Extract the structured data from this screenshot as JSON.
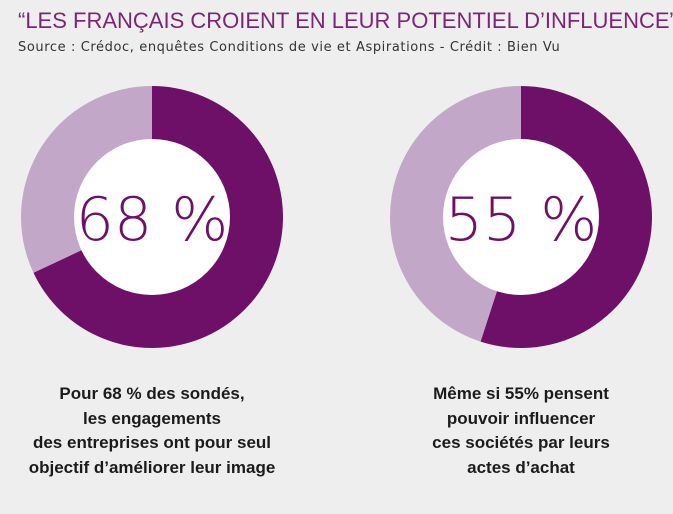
{
  "header": {
    "title": "“LES FRANÇAIS CROIENT EN LEUR POTENTIEL D’INFLUENCE”",
    "source": "Source : Crédoc, enquêtes Conditions de vie et Aspirations - Crédit : Bien Vu"
  },
  "colors": {
    "dark_purple": "#6e1068",
    "light_purple": "#c2a7c9",
    "title_purple": "#7d2575",
    "background": "#eeeeee"
  },
  "chart_data": [
    {
      "type": "pie",
      "variant": "donut",
      "center_label": "68 %",
      "values": [
        68,
        32
      ],
      "colors": [
        "#6e1068",
        "#c2a7c9"
      ],
      "caption_lines": [
        "Pour 68 % des sondés,",
        "les engagements",
        "des entreprises ont pour seul",
        "objectif d’améliorer leur image"
      ]
    },
    {
      "type": "pie",
      "variant": "donut",
      "center_label": "55 %",
      "values": [
        55,
        45
      ],
      "colors": [
        "#6e1068",
        "#c2a7c9"
      ],
      "caption_lines": [
        "Même si 55% pensent",
        "pouvoir influencer",
        "ces sociétés par leurs",
        "actes d’achat"
      ]
    }
  ]
}
